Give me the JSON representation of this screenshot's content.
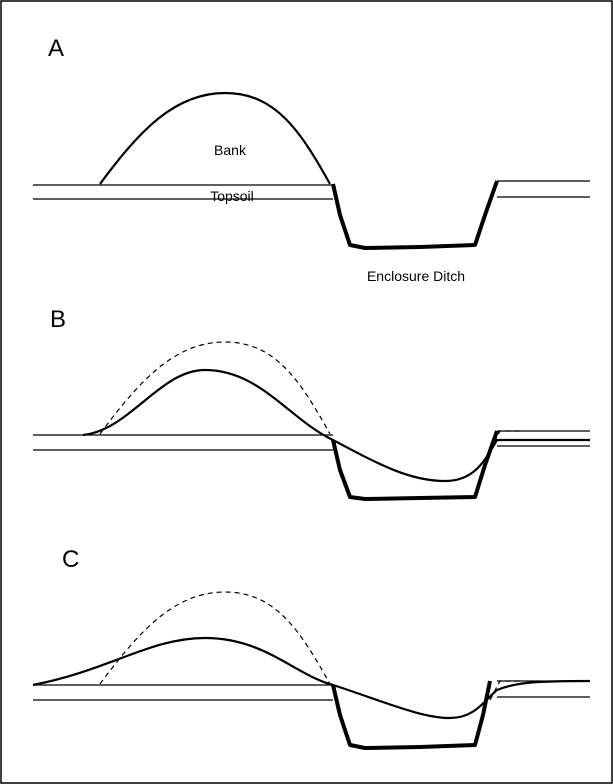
{
  "panels": [
    {
      "label": "A",
      "annotations": [
        "Bank",
        "Topsoil",
        "Enclosure Ditch"
      ]
    },
    {
      "label": "B"
    },
    {
      "label": "C"
    }
  ]
}
